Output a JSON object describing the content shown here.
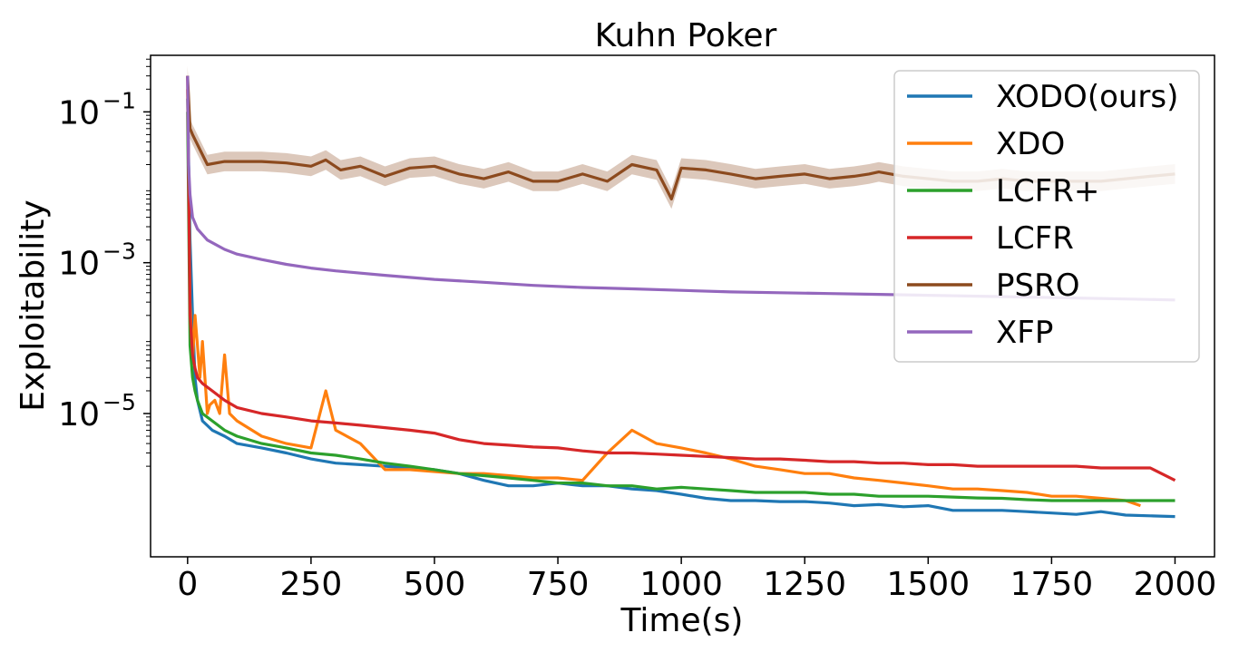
{
  "chart_data": {
    "type": "line",
    "title": "Kuhn Poker",
    "xlabel": "Time(s)",
    "ylabel": "Exploitability",
    "yscale": "log",
    "xlim": [
      -75,
      2080
    ],
    "ylim_log10": [
      -6.9,
      -0.25
    ],
    "grid": false,
    "legend_position": "top-right",
    "x_ticks": [
      0,
      250,
      500,
      750,
      1000,
      1250,
      1500,
      1750,
      2000
    ],
    "x_tick_labels": [
      "0",
      "250",
      "500",
      "750",
      "1000",
      "1250",
      "1500",
      "1750",
      "2000"
    ],
    "y_ticks_log10": [
      -1,
      -3,
      -5
    ],
    "y_tick_labels": [
      {
        "base": "10",
        "exp": "−1"
      },
      {
        "base": "10",
        "exp": "−3"
      },
      {
        "base": "10",
        "exp": "−5"
      }
    ],
    "series": [
      {
        "name": "XODO(ours)",
        "color": "#1f77b4",
        "x": [
          0,
          5,
          10,
          15,
          20,
          30,
          50,
          75,
          100,
          150,
          200,
          250,
          300,
          350,
          400,
          450,
          500,
          550,
          600,
          650,
          700,
          750,
          800,
          850,
          900,
          950,
          1000,
          1050,
          1100,
          1150,
          1200,
          1250,
          1300,
          1350,
          1400,
          1450,
          1500,
          1550,
          1600,
          1650,
          1700,
          1750,
          1800,
          1850,
          1900,
          1950,
          2000
        ],
        "y": [
          0.15,
          0.002,
          0.0002,
          3e-05,
          1.5e-05,
          8e-06,
          6e-06,
          5e-06,
          4e-06,
          3.5e-06,
          3e-06,
          2.5e-06,
          2.2e-06,
          2.1e-06,
          2e-06,
          1.9e-06,
          1.8e-06,
          1.6e-06,
          1.3e-06,
          1.1e-06,
          1.1e-06,
          1.2e-06,
          1.1e-06,
          1.1e-06,
          1e-06,
          9.5e-07,
          8.5e-07,
          7.5e-07,
          7e-07,
          7e-07,
          6.8e-07,
          6.8e-07,
          6.5e-07,
          6e-07,
          6.2e-07,
          5.8e-07,
          6e-07,
          5.2e-07,
          5.2e-07,
          5.2e-07,
          5e-07,
          4.8e-07,
          4.6e-07,
          5e-07,
          4.5e-07,
          4.4e-07,
          4.3e-07
        ]
      },
      {
        "name": "XDO",
        "color": "#ff7f0e",
        "x": [
          0,
          5,
          10,
          15,
          20,
          25,
          30,
          35,
          40,
          45,
          55,
          65,
          75,
          85,
          100,
          150,
          200,
          250,
          280,
          300,
          350,
          400,
          450,
          500,
          550,
          600,
          650,
          700,
          750,
          800,
          850,
          900,
          950,
          1000,
          1050,
          1100,
          1150,
          1200,
          1250,
          1300,
          1350,
          1400,
          1450,
          1500,
          1550,
          1600,
          1650,
          1700,
          1750,
          1800,
          1850,
          1900,
          1930
        ],
        "y": [
          0.2,
          0.0003,
          5e-05,
          0.0002,
          8e-05,
          3e-05,
          9e-05,
          3e-05,
          1e-05,
          1.3e-05,
          1.5e-05,
          1e-05,
          6e-05,
          1e-05,
          8e-06,
          5e-06,
          4e-06,
          3.5e-06,
          2e-05,
          6e-06,
          4e-06,
          1.8e-06,
          1.8e-06,
          1.7e-06,
          1.6e-06,
          1.6e-06,
          1.5e-06,
          1.4e-06,
          1.4e-06,
          1.3e-06,
          3e-06,
          6e-06,
          4e-06,
          3.5e-06,
          3e-06,
          2.5e-06,
          2e-06,
          1.8e-06,
          1.6e-06,
          1.6e-06,
          1.4e-06,
          1.3e-06,
          1.2e-06,
          1.1e-06,
          1e-06,
          1e-06,
          9.5e-07,
          9e-07,
          8e-07,
          8e-07,
          7.5e-07,
          7e-07,
          6e-07
        ]
      },
      {
        "name": "LCFR+",
        "color": "#2ca02c",
        "x": [
          0,
          5,
          10,
          15,
          20,
          30,
          50,
          75,
          100,
          150,
          200,
          250,
          300,
          350,
          400,
          450,
          500,
          550,
          600,
          650,
          700,
          750,
          800,
          850,
          900,
          950,
          1000,
          1050,
          1100,
          1150,
          1200,
          1250,
          1300,
          1350,
          1400,
          1450,
          1500,
          1550,
          1600,
          1650,
          1700,
          1750,
          1800,
          1850,
          1900,
          1950,
          2000
        ],
        "y": [
          0.1,
          8e-05,
          3e-05,
          2e-05,
          1.5e-05,
          1e-05,
          8e-06,
          6e-06,
          5e-06,
          4e-06,
          3.5e-06,
          3e-06,
          2.8e-06,
          2.5e-06,
          2.2e-06,
          2e-06,
          1.8e-06,
          1.6e-06,
          1.5e-06,
          1.4e-06,
          1.3e-06,
          1.2e-06,
          1.2e-06,
          1.1e-06,
          1.1e-06,
          1e-06,
          1.05e-06,
          1e-06,
          9.5e-07,
          9e-07,
          9e-07,
          9e-07,
          8.5e-07,
          8.5e-07,
          8e-07,
          8e-07,
          8e-07,
          7.8e-07,
          7.6e-07,
          7.5e-07,
          7.2e-07,
          7e-07,
          7e-07,
          7e-07,
          7e-07,
          7e-07,
          7e-07
        ]
      },
      {
        "name": "LCFR",
        "color": "#d62728",
        "x": [
          0,
          5,
          10,
          15,
          20,
          30,
          50,
          75,
          100,
          150,
          200,
          250,
          300,
          350,
          400,
          450,
          500,
          550,
          600,
          650,
          700,
          750,
          800,
          850,
          900,
          950,
          1000,
          1050,
          1100,
          1150,
          1200,
          1250,
          1300,
          1350,
          1400,
          1450,
          1500,
          1550,
          1600,
          1650,
          1700,
          1750,
          1800,
          1850,
          1900,
          1950,
          2000
        ],
        "y": [
          0.3,
          0.0002,
          6e-05,
          4e-05,
          3e-05,
          2.5e-05,
          2e-05,
          1.5e-05,
          1.2e-05,
          1e-05,
          9e-06,
          8e-06,
          7.5e-06,
          7e-06,
          6.5e-06,
          6e-06,
          5.5e-06,
          4.5e-06,
          4e-06,
          3.8e-06,
          3.6e-06,
          3.5e-06,
          3.2e-06,
          3e-06,
          3e-06,
          2.9e-06,
          2.8e-06,
          2.7e-06,
          2.6e-06,
          2.5e-06,
          2.5e-06,
          2.4e-06,
          2.3e-06,
          2.3e-06,
          2.2e-06,
          2.2e-06,
          2.1e-06,
          2.1e-06,
          2e-06,
          2e-06,
          2e-06,
          2e-06,
          2e-06,
          1.9e-06,
          1.9e-06,
          1.9e-06,
          1.3e-06
        ]
      },
      {
        "name": "PSRO",
        "color": "#8c4a1e",
        "x": [
          0,
          5,
          10,
          40,
          75,
          100,
          150,
          200,
          250,
          280,
          310,
          350,
          400,
          450,
          500,
          550,
          600,
          650,
          700,
          750,
          800,
          850,
          900,
          950,
          980,
          1000,
          1050,
          1100,
          1150,
          1200,
          1250,
          1300,
          1350,
          1380,
          1400,
          1450,
          1500,
          1550,
          1600,
          1650,
          1700,
          1750,
          1800,
          1850,
          1900,
          1950,
          2000
        ],
        "y": [
          0.3,
          0.06,
          0.05,
          0.02,
          0.022,
          0.022,
          0.022,
          0.021,
          0.019,
          0.023,
          0.017,
          0.019,
          0.014,
          0.018,
          0.019,
          0.015,
          0.013,
          0.016,
          0.012,
          0.012,
          0.015,
          0.012,
          0.02,
          0.017,
          0.007,
          0.018,
          0.017,
          0.015,
          0.013,
          0.014,
          0.015,
          0.013,
          0.014,
          0.015,
          0.016,
          0.014,
          0.013,
          0.012,
          0.012,
          0.013,
          0.012,
          0.012,
          0.012,
          0.012,
          0.013,
          0.014,
          0.015
        ]
      },
      {
        "name": "XFP",
        "color": "#9467bd",
        "x": [
          0,
          2,
          5,
          10,
          20,
          40,
          75,
          100,
          150,
          200,
          250,
          300,
          400,
          500,
          600,
          700,
          800,
          900,
          1000,
          1100,
          1200,
          1300,
          1400,
          1500,
          1600,
          1700,
          1800,
          1900,
          2000
        ],
        "y": [
          0.3,
          0.02,
          0.008,
          0.004,
          0.0028,
          0.002,
          0.0015,
          0.0013,
          0.0011,
          0.00095,
          0.00085,
          0.00078,
          0.00068,
          0.0006,
          0.00055,
          0.0005,
          0.00047,
          0.00045,
          0.00043,
          0.00041,
          0.0004,
          0.00039,
          0.00038,
          0.00037,
          0.00036,
          0.00035,
          0.00034,
          0.00033,
          0.00032
        ]
      }
    ]
  }
}
